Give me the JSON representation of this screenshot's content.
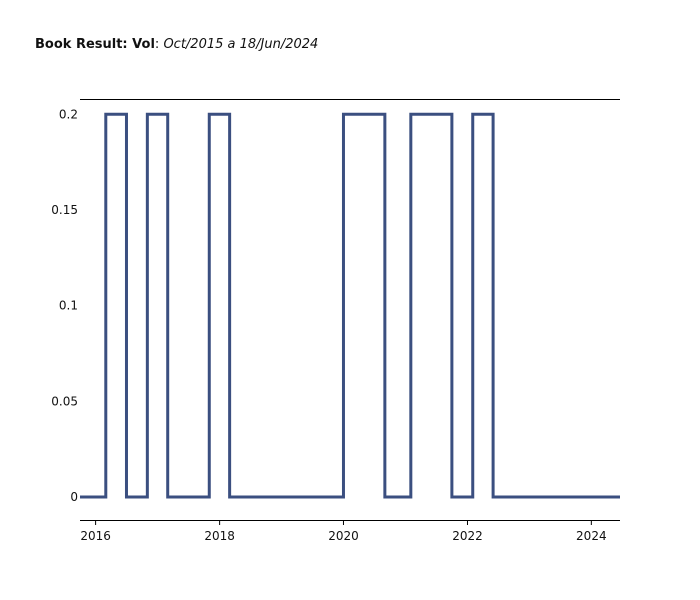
{
  "title": {
    "bold": "Book Result: Vol",
    "separator": ":",
    "range": "Oct/2015 a 18/Jun/2024"
  },
  "colors": {
    "line": "#3b4f80",
    "axis": "#000000",
    "background": "#ffffff"
  },
  "chart_data": {
    "type": "line",
    "line_shape": "step",
    "title": "Book Result: Vol: Oct/2015 a 18/Jun/2024",
    "xlabel": "",
    "ylabel": "",
    "xlim": [
      "2015-10-01",
      "2024-06-18"
    ],
    "ylim": [
      -0.012,
      0.208
    ],
    "grid": false,
    "legend": "none",
    "xticks": [
      {
        "value": "2016-01-01",
        "label": "2016"
      },
      {
        "value": "2018-01-01",
        "label": "2018"
      },
      {
        "value": "2020-01-01",
        "label": "2020"
      },
      {
        "value": "2022-01-01",
        "label": "2022"
      },
      {
        "value": "2024-01-01",
        "label": "2024"
      }
    ],
    "yticks": [
      {
        "value": 0,
        "label": "0"
      },
      {
        "value": 0.05,
        "label": "0.05"
      },
      {
        "value": 0.1,
        "label": "0.1"
      },
      {
        "value": 0.15,
        "label": "0.15"
      },
      {
        "value": 0.2,
        "label": "0.2"
      }
    ],
    "series": [
      {
        "x": [
          "2015-10-01",
          "2016-03-01",
          "2016-07-01",
          "2016-11-01",
          "2017-03-01",
          "2017-11-01",
          "2018-03-01",
          "2020-01-01",
          "2020-09-01",
          "2021-02-01",
          "2021-10-01",
          "2022-02-01",
          "2022-06-01",
          "2024-06-18"
        ],
        "y": [
          0,
          0.2,
          0,
          0.2,
          0,
          0.2,
          0,
          0.2,
          0,
          0.2,
          0,
          0.2,
          0,
          0
        ]
      }
    ]
  }
}
